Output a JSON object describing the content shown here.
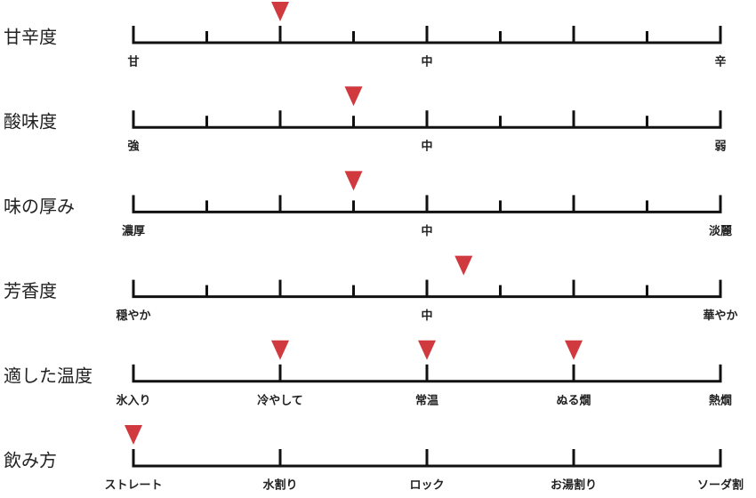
{
  "rows": [
    {
      "title": "甘辛度",
      "range": [
        0,
        8
      ],
      "markers": [
        2
      ],
      "labels": [
        "甘",
        "中",
        "辛"
      ]
    },
    {
      "title": "酸味度",
      "range": [
        0,
        8
      ],
      "markers": [
        3
      ],
      "labels": [
        "強",
        "中",
        "弱"
      ]
    },
    {
      "title": "味の厚み",
      "range": [
        0,
        8
      ],
      "markers": [
        3
      ],
      "labels": [
        "濃厚",
        "中",
        "淡麗"
      ]
    },
    {
      "title": "芳香度",
      "range": [
        0,
        8
      ],
      "markers": [
        4.5
      ],
      "labels": [
        "穏やか",
        "中",
        "華やか"
      ]
    },
    {
      "title": "適した温度",
      "range": [
        0,
        4
      ],
      "markers": [
        1,
        2,
        3
      ],
      "labels": [
        "氷入り",
        "冷やして",
        "常温",
        "ぬる燗",
        "熱燗"
      ]
    },
    {
      "title": "飲み方",
      "range": [
        0,
        4
      ],
      "markers": [
        0
      ],
      "labels": [
        "ストレート",
        "水割り",
        "ロック",
        "お湯割り",
        "ソーダ割"
      ]
    }
  ]
}
